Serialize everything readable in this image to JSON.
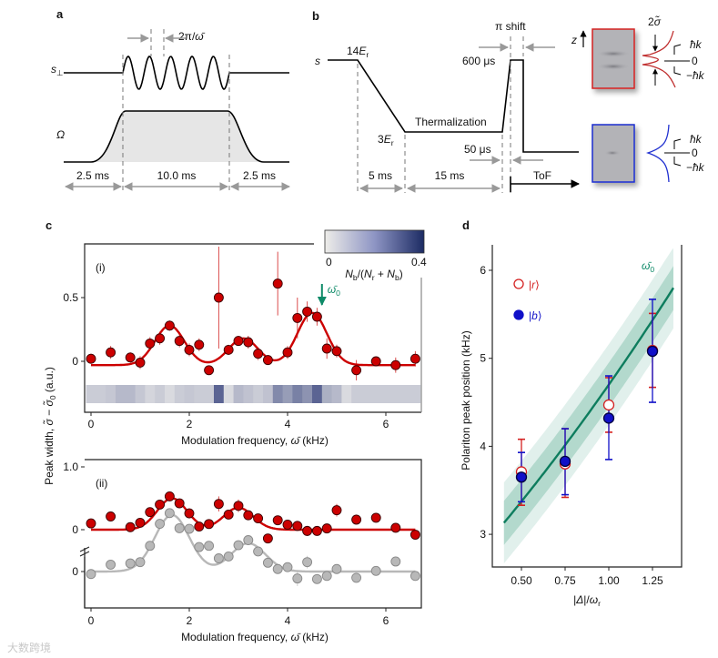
{
  "panel_letters": {
    "a": "a",
    "b": "b",
    "c": "c",
    "d": "d"
  },
  "panel_a": {
    "s_perp": [
      {
        "t": "s",
        "i": true
      },
      {
        "t": "⊥",
        "sub": true
      }
    ],
    "omega": [
      {
        "t": "Ω",
        "i": true
      }
    ],
    "period": [
      {
        "t": "2π/"
      },
      {
        "t": "ω̄",
        "i": true
      }
    ],
    "durations": [
      "2.5 ms",
      "10.0 ms",
      "2.5 ms"
    ]
  },
  "panel_b": {
    "s": [
      {
        "t": "s",
        "i": true
      }
    ],
    "depth_high": [
      {
        "t": "14"
      },
      {
        "t": "E",
        "i": true
      },
      {
        "t": "r",
        "sub": true
      }
    ],
    "depth_low": [
      {
        "t": "3"
      },
      {
        "t": "E",
        "i": true
      },
      {
        "t": "r",
        "sub": true
      }
    ],
    "thermalization": "Thermalization",
    "pi_shift": "π shift",
    "t600": "600 μs",
    "t50": "50 μs",
    "durations": [
      "5 ms",
      "15 ms"
    ],
    "tof": "ToF",
    "z": "z",
    "width_label": [
      {
        "t": "2"
      },
      {
        "t": "σ̃",
        "i": true
      }
    ],
    "momenta": [
      "ħk",
      "0",
      "−ħk"
    ],
    "frame_colors": {
      "red": "#d42020",
      "blue": "#1d2fd0"
    }
  },
  "shared_ylabel": [
    {
      "t": "Peak width, "
    },
    {
      "t": "σ̃",
      "i": true
    },
    {
      "t": " − "
    },
    {
      "t": "σ̃",
      "i": true
    },
    {
      "t": "0",
      "sub": true
    },
    {
      "t": " (a.u.)"
    }
  ],
  "chart_data": [
    {
      "id": "c-i",
      "type": "scatter",
      "panel_label": "(i)",
      "xlabel": [
        {
          "t": "Modulation frequency, "
        },
        {
          "t": "ω̄",
          "i": true
        },
        {
          "t": " (kHz)"
        }
      ],
      "xlim": [
        -0.15,
        6.75
      ],
      "ylim": [
        -0.4,
        0.9
      ],
      "xticks": [
        0,
        2,
        4,
        6
      ],
      "yticks": [
        0,
        0.5
      ],
      "ytick_labels": [
        "0",
        "0.5"
      ],
      "series": [
        {
          "name": "red",
          "color": "#cc0000",
          "x": [
            0,
            0.4,
            0.8,
            1.0,
            1.2,
            1.4,
            1.6,
            1.8,
            2.0,
            2.2,
            2.4,
            2.6,
            2.8,
            3.0,
            3.2,
            3.4,
            3.6,
            3.8,
            4.0,
            4.2,
            4.4,
            4.6,
            4.8,
            5.0,
            5.4,
            5.8,
            6.2,
            6.6
          ],
          "y": [
            0.02,
            0.07,
            0.03,
            -0.01,
            0.14,
            0.18,
            0.28,
            0.16,
            0.09,
            0.13,
            -0.07,
            0.5,
            0.09,
            0.16,
            0.15,
            0.06,
            0.01,
            0.61,
            0.07,
            0.34,
            0.39,
            0.35,
            0.1,
            0.08,
            -0.07,
            0.0,
            -0.03,
            0.02
          ],
          "err": [
            0.04,
            0.05,
            0.04,
            0.05,
            0.05,
            0.05,
            0.04,
            0.05,
            0.05,
            0.05,
            0.03,
            0.4,
            0.04,
            0.04,
            0.05,
            0.05,
            0.04,
            0.25,
            0.05,
            0.16,
            0.08,
            0.07,
            0.08,
            0.05,
            0.08,
            0.03,
            0.06,
            0.06
          ],
          "fit": {
            "baseline": -0.03,
            "x_range": [
              0,
              6.6
            ],
            "peaks": [
              {
                "center": 1.6,
                "amp": 0.31,
                "width": 0.3
              },
              {
                "center": 3.1,
                "amp": 0.21,
                "width": 0.3
              },
              {
                "center": 4.5,
                "amp": 0.41,
                "width": 0.3
              }
            ]
          }
        }
      ],
      "annotation": {
        "label": [
          {
            "t": "ω̄",
            "i": true
          },
          {
            "t": "0",
            "sub": true
          }
        ],
        "x": 4.7,
        "color": "#0e8a68"
      },
      "colorbar": {
        "label": [
          {
            "t": "N",
            "i": true
          },
          {
            "t": "b",
            "sub": true
          },
          {
            "t": "/("
          },
          {
            "t": "N",
            "i": true
          },
          {
            "t": "r",
            "sub": true
          },
          {
            "t": " + "
          },
          {
            "t": "N",
            "i": true
          },
          {
            "t": "b",
            "sub": true
          },
          {
            "t": ")"
          }
        ],
        "range": [
          0,
          0.4
        ],
        "tick_labels": [
          "0",
          "0.4"
        ],
        "strip_x": [
          0,
          0.2,
          0.4,
          0.6,
          0.8,
          1.0,
          1.2,
          1.4,
          1.6,
          1.8,
          2.0,
          2.2,
          2.4,
          2.6,
          2.8,
          3.0,
          3.2,
          3.4,
          3.6,
          3.8,
          4.0,
          4.2,
          4.4,
          4.6,
          4.8,
          5.0,
          5.2,
          5.4,
          5.6,
          5.8,
          6.0,
          6.2,
          6.4,
          6.6
        ],
        "strip_values": [
          0.06,
          0.06,
          0.07,
          0.1,
          0.1,
          0.07,
          0.04,
          0.06,
          0.03,
          0.06,
          0.07,
          0.06,
          0.06,
          0.28,
          0.03,
          0.1,
          0.08,
          0.06,
          0.08,
          0.2,
          0.16,
          0.22,
          0.18,
          0.28,
          0.12,
          0.1,
          0.03,
          0.06,
          0.06,
          0.06,
          0.06,
          0.06,
          0.06,
          0.06
        ]
      }
    },
    {
      "id": "c-ii",
      "type": "scatter",
      "panel_label": "(ii)",
      "xlabel": [
        {
          "t": "Modulation frequency, "
        },
        {
          "t": "ω̄",
          "i": true
        },
        {
          "t": " (kHz)"
        }
      ],
      "xlim": [
        -0.15,
        6.75
      ],
      "ylim": [
        -1.25,
        1.1
      ],
      "xticks": [
        0,
        2,
        4,
        6
      ],
      "yticks": [
        1.0,
        0
      ],
      "ytick_labels": [
        "1.0",
        "0"
      ],
      "gray_axis_tick_label": "0",
      "gray_offset": -0.66,
      "series": [
        {
          "name": "red",
          "color": "#cc0000",
          "x": [
            0,
            0.4,
            0.8,
            1.0,
            1.2,
            1.4,
            1.6,
            1.8,
            2.0,
            2.2,
            2.4,
            2.6,
            2.8,
            3.0,
            3.2,
            3.4,
            3.6,
            3.8,
            4.0,
            4.2,
            4.4,
            4.6,
            4.8,
            5.0,
            5.4,
            5.8,
            6.2,
            6.6
          ],
          "y": [
            0.1,
            0.21,
            0.04,
            0.11,
            0.28,
            0.4,
            0.53,
            0.42,
            0.26,
            0.05,
            0.09,
            0.41,
            0.24,
            0.38,
            0.23,
            0.18,
            -0.14,
            0.15,
            0.08,
            0.06,
            -0.02,
            -0.02,
            0.02,
            0.31,
            0.16,
            0.19,
            0.03,
            -0.08
          ],
          "err": [
            0.05,
            0.06,
            0.04,
            0.06,
            0.06,
            0.06,
            0.04,
            0.06,
            0.08,
            0.05,
            0.06,
            0.12,
            0.06,
            0.1,
            0.05,
            0.06,
            0.06,
            0.06,
            0.06,
            0.08,
            0.08,
            0.06,
            0.05,
            0.1,
            0.08,
            0.05,
            0.06,
            0.05
          ],
          "fit": {
            "baseline": 0,
            "x_range": [
              0,
              6.6
            ],
            "peaks": [
              {
                "center": 1.65,
                "amp": 0.5,
                "width": 0.3
              },
              {
                "center": 3.0,
                "amp": 0.35,
                "width": 0.3
              }
            ]
          }
        },
        {
          "name": "gray",
          "color": "#b8b8b8",
          "x": [
            0,
            0.4,
            0.8,
            1.0,
            1.2,
            1.4,
            1.6,
            1.8,
            2.0,
            2.2,
            2.4,
            2.6,
            2.8,
            3.0,
            3.2,
            3.4,
            3.6,
            3.8,
            4.0,
            4.2,
            4.4,
            4.6,
            4.8,
            5.0,
            5.4,
            5.8,
            6.2,
            6.6
          ],
          "y": [
            -0.04,
            0.11,
            0.13,
            0.15,
            0.41,
            0.76,
            0.93,
            0.69,
            0.68,
            0.39,
            0.41,
            0.21,
            0.24,
            0.42,
            0.5,
            0.32,
            0.14,
            0.04,
            0.07,
            -0.11,
            0.15,
            -0.12,
            -0.07,
            0.04,
            -0.1,
            0.01,
            0.16,
            -0.07
          ],
          "err": [
            0.05,
            0.06,
            0.05,
            0.05,
            0.06,
            0.06,
            0.05,
            0.06,
            0.07,
            0.05,
            0.07,
            0.06,
            0.05,
            0.06,
            0.05,
            0.06,
            0.06,
            0.06,
            0.05,
            0.12,
            0.1,
            0.05,
            0.05,
            0.06,
            0.06,
            0.06,
            0.08,
            0.05
          ],
          "fit": {
            "baseline": 0,
            "x_range": [
              0,
              6.6
            ],
            "peaks": [
              {
                "center": 1.65,
                "amp": 0.9,
                "width": 0.35
              },
              {
                "center": 3.2,
                "amp": 0.45,
                "width": 0.35
              }
            ]
          }
        }
      ]
    },
    {
      "id": "d",
      "type": "scatter",
      "xlabel": [
        {
          "t": "|"
        },
        {
          "t": "Δ",
          "i": true
        },
        {
          "t": "|/"
        },
        {
          "t": "ω",
          "i": true
        },
        {
          "t": "r",
          "sub": true
        }
      ],
      "ylabel": "Polariton peak position (kHz)",
      "xlim": [
        0.33,
        1.38
      ],
      "ylim": [
        2.62,
        6.28
      ],
      "xticks": [
        0.5,
        0.75,
        1.0,
        1.25
      ],
      "xtick_labels": [
        "0.50",
        "0.75",
        "1.00",
        "1.25"
      ],
      "yticks": [
        3,
        4,
        5,
        6
      ],
      "ytick_labels": [
        "3",
        "4",
        "5",
        "6"
      ],
      "series": [
        {
          "name": "|r⟩",
          "legend": [
            {
              "t": "|"
            },
            {
              "t": "r",
              "i": true
            },
            {
              "t": "⟩"
            }
          ],
          "color": "#d42020",
          "marker": "open-circle",
          "x": [
            0.5,
            0.75,
            1.0,
            1.25
          ],
          "y": [
            3.71,
            3.8,
            4.47,
            5.09
          ],
          "lo": [
            3.33,
            3.42,
            4.16,
            4.67
          ],
          "hi": [
            4.08,
            4.2,
            4.78,
            5.51
          ]
        },
        {
          "name": "|b⟩",
          "legend": [
            {
              "t": "|"
            },
            {
              "t": "b",
              "i": true
            },
            {
              "t": "⟩"
            }
          ],
          "color": "#1010c8",
          "marker": "filled-circle",
          "x": [
            0.5,
            0.75,
            1.0,
            1.25
          ],
          "y": [
            3.65,
            3.83,
            4.32,
            5.08
          ],
          "lo": [
            3.37,
            3.45,
            3.85,
            4.5
          ],
          "hi": [
            3.93,
            4.2,
            4.8,
            5.67
          ]
        }
      ],
      "model": {
        "label": [
          {
            "t": "ω̄",
            "i": true
          },
          {
            "t": "0",
            "sub": true
          }
        ],
        "color": "#0e7d5e",
        "coeffs": [
          2.23,
          2.103,
          0.367
        ],
        "x_range": [
          0.4,
          1.37
        ],
        "band_inner": 0.25,
        "band_outer": 0.46
      }
    }
  ],
  "watermark": "大数跨境"
}
